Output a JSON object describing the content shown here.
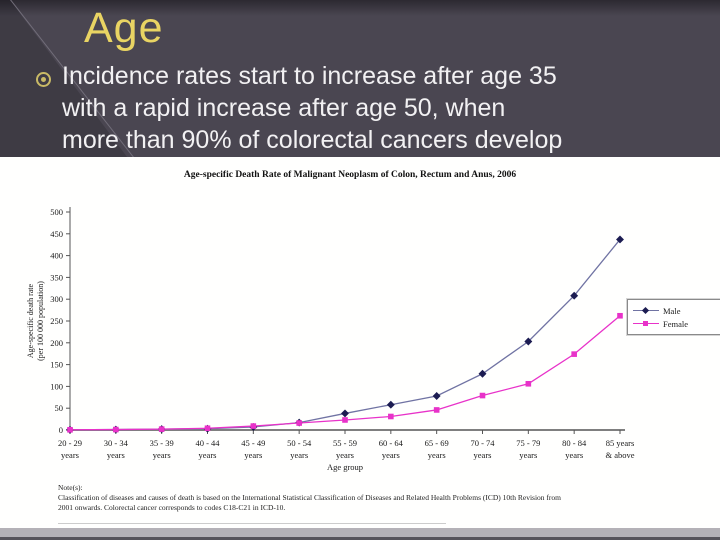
{
  "slide": {
    "title": "Age",
    "bullet": {
      "lines": [
        "Incidence rates start to increase after age 35",
        "with a rapid increase after age 50, when",
        "more than 90% of colorectal cancers develop"
      ]
    },
    "colors": {
      "background": "#4a4651",
      "title_text": "#e9d463",
      "bullet_ring": "#c9ba66",
      "body_text": "#f2f1f3",
      "panel": "#ffffff",
      "bottom_bar": "#b4b1b7",
      "male_line": "#7073a3",
      "male_marker": "#1c1c52",
      "female": "#e832c9"
    }
  },
  "chart_data": {
    "type": "line",
    "title": "Age-specific Death Rate of Malignant Neoplasm of Colon, Rectum and Anus, 2006",
    "xlabel": "Age group",
    "ylabel_lines": [
      "Age-specific death rate",
      "(per 100 000 population)"
    ],
    "ylim": [
      0,
      500
    ],
    "ytick_step": 50,
    "grid": false,
    "legend_position": "right",
    "categories": [
      [
        "20 - 29",
        "years"
      ],
      [
        "30 - 34",
        "years"
      ],
      [
        "35 - 39",
        "years"
      ],
      [
        "40 - 44",
        "years"
      ],
      [
        "45 - 49",
        "years"
      ],
      [
        "50 - 54",
        "years"
      ],
      [
        "55 - 59",
        "years"
      ],
      [
        "60 - 64",
        "years"
      ],
      [
        "65 - 69",
        "years"
      ],
      [
        "70 - 74",
        "years"
      ],
      [
        "75 - 79",
        "years"
      ],
      [
        "80 - 84",
        "years"
      ],
      [
        "85 years",
        "& above"
      ]
    ],
    "series": [
      {
        "name": "Male",
        "marker": "diamond",
        "line_color": "#7073a3",
        "marker_color": "#1c1c52",
        "values": [
          0.5,
          1,
          2,
          3,
          7,
          17,
          38,
          58,
          78,
          129,
          203,
          308,
          437
        ]
      },
      {
        "name": "Female",
        "marker": "square",
        "line_color": "#e832c9",
        "marker_color": "#e832c9",
        "values": [
          0.5,
          1,
          2,
          4,
          9,
          16,
          23,
          31,
          46,
          79,
          106,
          174,
          262
        ]
      }
    ]
  },
  "notes": {
    "label": "Note(s):",
    "lines": [
      "Classification of diseases and causes of death is based on the International Statistical Classification of Diseases and Related Health Problems (ICD) 10th Revision from",
      "2001 onwards. Colorectal cancer corresponds to codes C18-C21 in ICD-10."
    ]
  }
}
